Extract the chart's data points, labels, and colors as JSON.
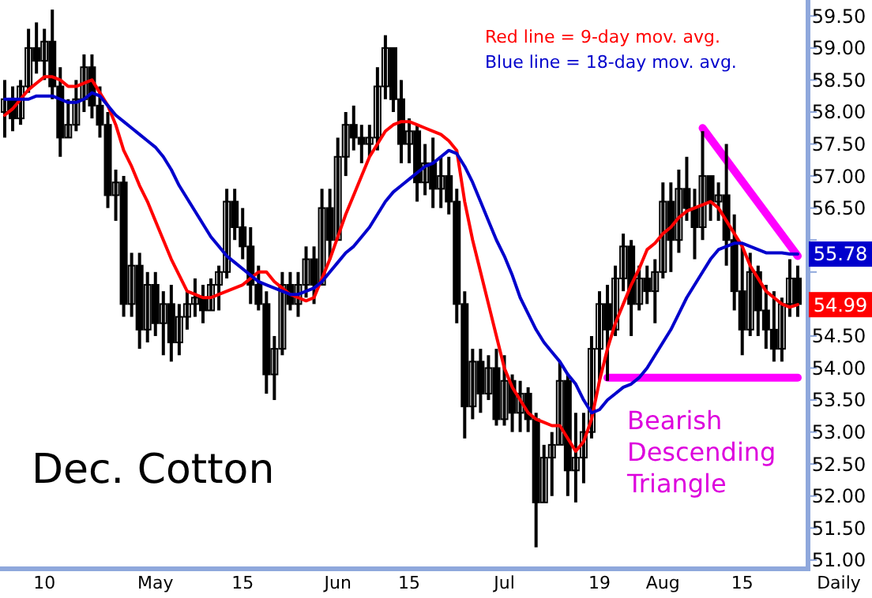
{
  "chart_data": {
    "type": "candlestick",
    "title": "Dec. Cotton",
    "xlabel": "Daily",
    "legend": "top right",
    "grid": false,
    "annotations": [
      "Bearish Descending Triangle"
    ],
    "ylim": [
      50.9,
      59.75
    ],
    "yticks": [
      {
        "value": 51,
        "label": "51.00"
      },
      {
        "value": 51.5,
        "label": "51.50"
      },
      {
        "value": 52,
        "label": "52.00"
      },
      {
        "value": 52.5,
        "label": "52.50"
      },
      {
        "value": 53,
        "label": "53.00"
      },
      {
        "value": 53.5,
        "label": "53.50"
      },
      {
        "value": 54,
        "label": "54.00"
      },
      {
        "value": 54.5,
        "label": "54.50"
      },
      {
        "value": 55,
        "label": null
      },
      {
        "value": 55.5,
        "label": null
      },
      {
        "value": 56,
        "label": null
      },
      {
        "value": 56.5,
        "label": "56.50"
      },
      {
        "value": 57,
        "label": "57.00"
      },
      {
        "value": 57.5,
        "label": "57.50"
      },
      {
        "value": 58,
        "label": "58.00"
      },
      {
        "value": 58.5,
        "label": "58.50"
      },
      {
        "value": 59,
        "label": "59.00"
      },
      {
        "value": 59.5,
        "label": "59.50"
      }
    ],
    "categories": [
      null,
      null,
      null,
      null,
      null,
      "10",
      null,
      null,
      null,
      null,
      null,
      null,
      null,
      null,
      null,
      null,
      null,
      null,
      null,
      "May",
      null,
      null,
      null,
      null,
      null,
      null,
      null,
      null,
      null,
      null,
      "15",
      null,
      null,
      null,
      null,
      null,
      null,
      null,
      null,
      null,
      null,
      null,
      "Jun",
      null,
      null,
      null,
      null,
      null,
      null,
      null,
      null,
      "15",
      null,
      null,
      null,
      null,
      null,
      null,
      null,
      null,
      null,
      null,
      null,
      "Jul",
      null,
      null,
      null,
      null,
      null,
      null,
      null,
      null,
      null,
      null,
      null,
      "19",
      null,
      null,
      null,
      null,
      null,
      null,
      null,
      "Aug",
      null,
      null,
      null,
      null,
      null,
      null,
      null,
      null,
      null,
      "15",
      null,
      null,
      null,
      null,
      null,
      null,
      null
    ],
    "ohlc": [
      [
        58.0,
        58.5,
        57.6,
        58.2
      ],
      [
        58.2,
        58.4,
        57.7,
        57.9
      ],
      [
        57.9,
        58.5,
        57.8,
        58.4
      ],
      [
        58.4,
        59.3,
        58.3,
        59.0
      ],
      [
        59.0,
        59.4,
        58.6,
        58.8
      ],
      [
        58.8,
        59.3,
        58.5,
        59.1
      ],
      [
        59.1,
        59.6,
        58.2,
        58.4
      ],
      [
        58.4,
        58.7,
        57.3,
        57.6
      ],
      [
        57.6,
        58.2,
        57.6,
        57.8
      ],
      [
        57.8,
        58.5,
        57.7,
        58.2
      ],
      [
        58.2,
        58.9,
        58.0,
        58.7
      ],
      [
        58.7,
        58.9,
        57.9,
        58.1
      ],
      [
        58.1,
        58.4,
        57.6,
        57.8
      ],
      [
        57.8,
        58.0,
        56.5,
        56.7
      ],
      [
        56.7,
        57.1,
        56.3,
        56.9
      ],
      [
        56.9,
        57.0,
        54.8,
        55.0
      ],
      [
        55.0,
        55.8,
        54.8,
        55.6
      ],
      [
        55.6,
        55.8,
        54.3,
        54.6
      ],
      [
        54.6,
        55.5,
        54.4,
        55.3
      ],
      [
        55.3,
        55.5,
        54.5,
        54.7
      ],
      [
        54.7,
        55.2,
        54.2,
        55.0
      ],
      [
        55.0,
        55.3,
        54.1,
        54.4
      ],
      [
        54.4,
        55.0,
        54.2,
        54.8
      ],
      [
        54.8,
        55.2,
        54.6,
        55.0
      ],
      [
        55.0,
        55.4,
        54.8,
        55.1
      ],
      [
        55.1,
        55.3,
        54.7,
        54.9
      ],
      [
        54.9,
        55.4,
        54.9,
        55.3
      ],
      [
        55.3,
        55.6,
        54.9,
        55.5
      ],
      [
        55.5,
        56.8,
        55.4,
        56.6
      ],
      [
        56.6,
        56.8,
        56.0,
        56.2
      ],
      [
        56.2,
        56.5,
        55.7,
        55.9
      ],
      [
        55.9,
        56.2,
        55.0,
        55.3
      ],
      [
        55.3,
        55.6,
        54.9,
        55.0
      ],
      [
        55.0,
        55.2,
        53.6,
        53.9
      ],
      [
        53.9,
        54.5,
        53.5,
        54.3
      ],
      [
        54.3,
        55.5,
        54.2,
        55.3
      ],
      [
        55.3,
        55.5,
        54.9,
        55.0
      ],
      [
        55.0,
        55.5,
        54.8,
        55.3
      ],
      [
        55.3,
        55.9,
        55.1,
        55.7
      ],
      [
        55.7,
        55.9,
        55.0,
        55.3
      ],
      [
        55.3,
        56.8,
        55.3,
        56.5
      ],
      [
        56.5,
        56.8,
        55.7,
        56.0
      ],
      [
        56.0,
        57.6,
        56.0,
        57.3
      ],
      [
        57.3,
        58.0,
        57.0,
        57.8
      ],
      [
        57.8,
        58.1,
        57.4,
        57.6
      ],
      [
        57.6,
        57.8,
        57.2,
        57.5
      ],
      [
        57.5,
        57.8,
        57.3,
        57.6
      ],
      [
        57.6,
        58.7,
        57.4,
        58.4
      ],
      [
        58.4,
        59.2,
        58.2,
        59.0
      ],
      [
        59.0,
        59.0,
        58.0,
        58.2
      ],
      [
        58.2,
        58.5,
        57.2,
        57.5
      ],
      [
        57.5,
        57.9,
        57.2,
        57.7
      ],
      [
        57.7,
        57.8,
        56.6,
        56.9
      ],
      [
        56.9,
        57.5,
        56.7,
        57.2
      ],
      [
        57.2,
        57.6,
        56.5,
        56.8
      ],
      [
        56.8,
        57.3,
        56.5,
        57.0
      ],
      [
        57.0,
        57.3,
        56.4,
        56.6
      ],
      [
        56.6,
        56.8,
        54.7,
        55.0
      ],
      [
        55.0,
        55.2,
        52.9,
        53.4
      ],
      [
        53.4,
        54.3,
        53.2,
        54.1
      ],
      [
        54.1,
        54.3,
        53.3,
        53.6
      ],
      [
        53.6,
        54.2,
        53.5,
        54.0
      ],
      [
        54.0,
        54.3,
        53.1,
        53.2
      ],
      [
        53.2,
        54.2,
        53.1,
        53.8
      ],
      [
        53.8,
        53.9,
        53.0,
        53.3
      ],
      [
        53.3,
        53.8,
        53.0,
        53.6
      ],
      [
        53.6,
        53.7,
        53.0,
        53.2
      ],
      [
        53.2,
        53.3,
        51.2,
        51.9
      ],
      [
        51.9,
        52.8,
        51.9,
        52.6
      ],
      [
        52.6,
        53.0,
        52.0,
        52.8
      ],
      [
        52.8,
        54.1,
        52.8,
        53.8
      ],
      [
        53.8,
        53.9,
        52.0,
        52.4
      ],
      [
        52.4,
        53.3,
        51.9,
        52.6
      ],
      [
        52.6,
        53.3,
        52.2,
        53.0
      ],
      [
        53.0,
        54.5,
        52.9,
        54.3
      ],
      [
        54.3,
        55.2,
        53.8,
        55.0
      ],
      [
        55.0,
        55.3,
        53.8,
        54.6
      ],
      [
        54.6,
        55.6,
        54.5,
        55.4
      ],
      [
        55.4,
        56.1,
        55.2,
        55.9
      ],
      [
        55.9,
        56.0,
        54.5,
        55.0
      ],
      [
        55.0,
        55.6,
        54.9,
        55.4
      ],
      [
        55.4,
        55.6,
        55.0,
        55.2
      ],
      [
        55.2,
        55.7,
        54.7,
        55.5
      ],
      [
        55.5,
        56.9,
        55.4,
        56.6
      ],
      [
        56.6,
        56.9,
        55.5,
        56.0
      ],
      [
        56.0,
        57.1,
        55.8,
        56.8
      ],
      [
        56.8,
        57.3,
        56.3,
        56.5
      ],
      [
        56.5,
        56.8,
        55.7,
        56.2
      ],
      [
        56.2,
        57.7,
        56.0,
        57.0
      ],
      [
        57.0,
        57.0,
        56.3,
        56.6
      ],
      [
        56.6,
        56.9,
        56.3,
        56.7
      ],
      [
        56.7,
        57.5,
        55.6,
        56.0
      ],
      [
        56.0,
        56.4,
        54.9,
        55.2
      ],
      [
        55.2,
        55.9,
        54.2,
        54.6
      ],
      [
        54.6,
        55.8,
        54.5,
        55.5
      ],
      [
        55.5,
        55.6,
        54.5,
        54.9
      ],
      [
        54.9,
        55.3,
        54.3,
        54.6
      ],
      [
        54.6,
        55.2,
        54.1,
        54.3
      ],
      [
        54.3,
        55.1,
        54.1,
        55.0
      ],
      [
        55.0,
        55.7,
        54.8,
        55.4
      ],
      [
        55.4,
        55.6,
        54.8,
        55.0
      ]
    ],
    "series": [
      {
        "name": "Red line = 9-day mov. avg.",
        "type": "line",
        "color": "#ff0000",
        "values": [
          57.95,
          58.05,
          58.2,
          58.35,
          58.45,
          58.55,
          58.55,
          58.5,
          58.4,
          58.4,
          58.45,
          58.5,
          58.3,
          58.1,
          57.8,
          57.4,
          57.15,
          56.85,
          56.6,
          56.3,
          56.0,
          55.7,
          55.45,
          55.2,
          55.15,
          55.1,
          55.1,
          55.15,
          55.2,
          55.25,
          55.3,
          55.4,
          55.5,
          55.5,
          55.35,
          55.25,
          55.15,
          55.1,
          55.05,
          55.1,
          55.4,
          55.7,
          56.05,
          56.4,
          56.7,
          57.0,
          57.3,
          57.5,
          57.7,
          57.8,
          57.85,
          57.85,
          57.8,
          57.75,
          57.7,
          57.65,
          57.55,
          57.4,
          56.6,
          56.0,
          55.5,
          55.0,
          54.5,
          54.0,
          53.7,
          53.5,
          53.3,
          53.2,
          53.15,
          53.1,
          53.1,
          52.9,
          52.7,
          52.85,
          53.2,
          53.8,
          54.3,
          54.7,
          55.0,
          55.3,
          55.55,
          55.85,
          55.95,
          56.1,
          56.2,
          56.35,
          56.45,
          56.5,
          56.55,
          56.6,
          56.5,
          56.3,
          56.1,
          55.9,
          55.6,
          55.4,
          55.2,
          55.1,
          55.0,
          54.95,
          54.99
        ],
        "value_labels": [
          null,
          null,
          null,
          null,
          null,
          null,
          null,
          null,
          null,
          null,
          null,
          null,
          null,
          null,
          null,
          null,
          null,
          null,
          null,
          null,
          null,
          null,
          null,
          null,
          null,
          null,
          null,
          null,
          null,
          null,
          null,
          null,
          null,
          null,
          null,
          null,
          null,
          null,
          null,
          null,
          null,
          null,
          null,
          null,
          null,
          null,
          null,
          null,
          null,
          null,
          null,
          null,
          null,
          null,
          null,
          null,
          null,
          null,
          null,
          null,
          null,
          null,
          null,
          null,
          null,
          null,
          null,
          null,
          null,
          null,
          null,
          null,
          null,
          null,
          null,
          null,
          null,
          null,
          null,
          null,
          null,
          null,
          null,
          null,
          null,
          null,
          null,
          null,
          null,
          null,
          null,
          null,
          null,
          null,
          null,
          null,
          null,
          null,
          null,
          null,
          "54.99"
        ]
      },
      {
        "name": "Blue line = 18-day mov. avg.",
        "type": "line",
        "color": "#0000cc",
        "values": [
          58.2,
          58.2,
          58.2,
          58.2,
          58.25,
          58.25,
          58.25,
          58.2,
          58.15,
          58.15,
          58.2,
          58.3,
          58.25,
          58.1,
          57.95,
          57.85,
          57.75,
          57.65,
          57.55,
          57.45,
          57.3,
          57.1,
          56.85,
          56.65,
          56.45,
          56.25,
          56.05,
          55.9,
          55.75,
          55.65,
          55.55,
          55.45,
          55.35,
          55.3,
          55.25,
          55.2,
          55.15,
          55.15,
          55.2,
          55.25,
          55.35,
          55.5,
          55.65,
          55.8,
          55.9,
          56.05,
          56.2,
          56.4,
          56.6,
          56.75,
          56.85,
          56.95,
          57.05,
          57.15,
          57.2,
          57.3,
          57.4,
          57.35,
          57.15,
          56.9,
          56.6,
          56.3,
          56.0,
          55.75,
          55.45,
          55.1,
          54.85,
          54.6,
          54.4,
          54.25,
          54.1,
          53.9,
          53.75,
          53.5,
          53.3,
          53.35,
          53.5,
          53.6,
          53.7,
          53.75,
          53.85,
          54.0,
          54.2,
          54.4,
          54.6,
          54.85,
          55.1,
          55.3,
          55.5,
          55.7,
          55.85,
          55.9,
          55.95,
          55.95,
          55.9,
          55.85,
          55.8,
          55.8,
          55.8,
          55.78,
          55.78
        ],
        "value_labels": [
          null,
          null,
          null,
          null,
          null,
          null,
          null,
          null,
          null,
          null,
          null,
          null,
          null,
          null,
          null,
          null,
          null,
          null,
          null,
          null,
          null,
          null,
          null,
          null,
          null,
          null,
          null,
          null,
          null,
          null,
          null,
          null,
          null,
          null,
          null,
          null,
          null,
          null,
          null,
          null,
          null,
          null,
          null,
          null,
          null,
          null,
          null,
          null,
          null,
          null,
          null,
          null,
          null,
          null,
          null,
          null,
          null,
          null,
          null,
          null,
          null,
          null,
          null,
          null,
          null,
          null,
          null,
          null,
          null,
          null,
          null,
          null,
          null,
          null,
          null,
          null,
          null,
          null,
          null,
          null,
          null,
          null,
          null,
          null,
          null,
          null,
          null,
          null,
          null,
          null,
          null,
          null,
          null,
          null,
          null,
          null,
          null,
          null,
          null,
          null,
          "55.78"
        ]
      },
      {
        "type": "line",
        "color": "#ff00ff",
        "values": [
          null,
          null,
          null,
          null,
          null,
          null,
          null,
          null,
          null,
          null,
          null,
          null,
          null,
          null,
          null,
          null,
          null,
          null,
          null,
          null,
          null,
          null,
          null,
          null,
          null,
          null,
          null,
          null,
          null,
          null,
          null,
          null,
          null,
          null,
          null,
          null,
          null,
          null,
          null,
          null,
          null,
          null,
          null,
          null,
          null,
          null,
          null,
          null,
          null,
          null,
          null,
          null,
          null,
          null,
          null,
          null,
          null,
          null,
          null,
          null,
          null,
          null,
          null,
          null,
          null,
          null,
          null,
          null,
          null,
          null,
          null,
          null,
          null,
          null,
          null,
          null,
          53.85,
          null,
          null,
          null,
          null,
          null,
          null,
          null,
          null,
          null,
          null,
          null,
          null,
          null,
          null,
          null,
          null,
          null,
          null,
          null,
          null,
          null,
          null,
          null,
          53.85
        ]
      },
      {
        "type": "line",
        "color": "#ff00ff",
        "values": [
          null,
          null,
          null,
          null,
          null,
          null,
          null,
          null,
          null,
          null,
          null,
          null,
          null,
          null,
          null,
          null,
          null,
          null,
          null,
          null,
          null,
          null,
          null,
          null,
          null,
          null,
          null,
          null,
          null,
          null,
          null,
          null,
          null,
          null,
          null,
          null,
          null,
          null,
          null,
          null,
          null,
          null,
          null,
          null,
          null,
          null,
          null,
          null,
          null,
          null,
          null,
          null,
          null,
          null,
          null,
          null,
          null,
          null,
          null,
          null,
          null,
          null,
          null,
          null,
          null,
          null,
          null,
          null,
          null,
          null,
          null,
          null,
          null,
          null,
          null,
          null,
          null,
          null,
          null,
          null,
          null,
          null,
          null,
          null,
          null,
          null,
          null,
          null,
          57.75,
          null,
          null,
          null,
          null,
          null,
          null,
          null,
          null,
          null,
          null,
          null,
          55.75
        ]
      }
    ]
  }
}
